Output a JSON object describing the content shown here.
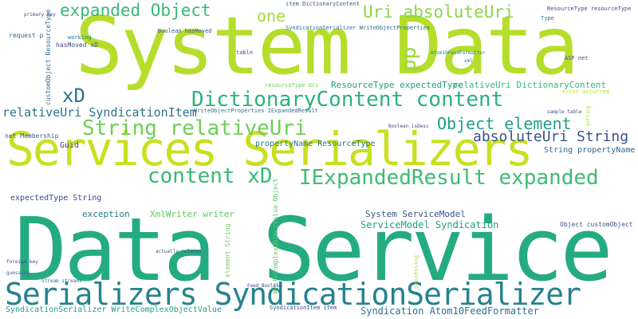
{
  "words": [
    {
      "text": "System Data",
      "color": "#b5de2b"
    },
    {
      "text": "Data Service",
      "color": "#25ab82"
    },
    {
      "text": "Services Serializers",
      "color": "#c8e020"
    },
    {
      "text": "Serializers SyndicationSerializer",
      "color": "#26828e"
    },
    {
      "text": "DictionaryContent content",
      "color": "#2db27d"
    },
    {
      "text": "String relativeUri",
      "color": "#6ece58"
    },
    {
      "text": "content xD",
      "color": "#38b977"
    },
    {
      "text": "IExpandedResult expanded",
      "color": "#3dbc74"
    },
    {
      "text": "expanded Object",
      "color": "#38b977"
    },
    {
      "text": "Uri absoluteUri",
      "color": "#8bd646"
    },
    {
      "text": "Object element",
      "color": "#1f9e89"
    },
    {
      "text": "absoluteUri String",
      "color": "#3b528b"
    },
    {
      "text": "one",
      "color": "#a5db36"
    },
    {
      "text": "xD",
      "color": "#2c728e"
    },
    {
      "text": "pp",
      "color": "#9dd93b"
    },
    {
      "text": "relativeUri SyndicationItem",
      "color": "#2c728e"
    },
    {
      "text": "SyndicationSerializer WriteComplexObjectValue",
      "color": "#1fa187"
    },
    {
      "text": "Syndication Atom10FeedFormatter",
      "color": "#2c728e"
    },
    {
      "text": "ServiceModel Syndication",
      "color": "#1f9e89"
    },
    {
      "text": "System ServiceModel",
      "color": "#3b528b"
    },
    {
      "text": "ResourceType expectedType",
      "color": "#1fa187"
    },
    {
      "text": "relativeUri DictionaryContent",
      "color": "#35b779"
    },
    {
      "text": "String propertyName",
      "color": "#31688e"
    },
    {
      "text": "propertyName ResourceType",
      "color": "#2a788e"
    },
    {
      "text": "expectedType String",
      "color": "#3e4a89"
    },
    {
      "text": "exception",
      "color": "#2a788e"
    },
    {
      "text": "XmlWriter writer",
      "color": "#5ec962"
    },
    {
      "text": "Object customObject",
      "color": "#3b528b"
    },
    {
      "text": "Guid",
      "color": "#443983"
    },
    {
      "text": "net Membership",
      "color": "#365c8d"
    },
    {
      "text": "hasMoved xD",
      "color": "#3e4a89"
    },
    {
      "text": "request p",
      "color": "#31688e"
    },
    {
      "text": "working",
      "color": "#2a788e"
    },
    {
      "text": "Boolean hasMoved",
      "color": "#3b528b"
    },
    {
      "text": "table",
      "color": "#3b528b"
    },
    {
      "text": "item DictionaryContent",
      "color": "#3b528b"
    },
    {
      "text": "SyndicationSerializer WriteObjectProperties",
      "color": "#31688e"
    },
    {
      "text": "WriteObjectProperties IExpandedResult",
      "color": "#2c728e"
    },
    {
      "text": "resourceType Uri",
      "color": "#6ece58"
    },
    {
      "text": "ResourceType resourceType",
      "color": "#3e4a89"
    },
    {
      "text": "ASP net",
      "color": "#3b528b"
    },
    {
      "text": "error occurred",
      "color": "#b5de2b"
    },
    {
      "text": "element String",
      "color": "#6ece58"
    },
    {
      "text": "WriteComplexObjectValue Object",
      "color": "#5ec962"
    },
    {
      "text": "customObject ResourceType",
      "color": "#31688e"
    },
    {
      "text": "SyndicationItem item",
      "color": "#3e4a89"
    },
    {
      "text": "processing",
      "color": "#b5de2b"
    },
    {
      "text": "Type",
      "color": "#2a788e"
    },
    {
      "text": "primary key",
      "color": "#3e4a89"
    },
    {
      "text": "Boolean isDesc",
      "color": "#3e4a89"
    },
    {
      "text": "actually relates",
      "color": "#3b528b"
    },
    {
      "text": "sample table",
      "color": "#3b528b"
    },
    {
      "text": "getting",
      "color": "#addc30"
    },
    {
      "text": "Atom10FeedFormatter",
      "color": "#26828e"
    },
    {
      "text": "foreign key",
      "color": "#3e4a89"
    },
    {
      "text": "guessing",
      "color": "#365c8d"
    },
    {
      "text": "Stream streams",
      "color": "#2c728e"
    },
    {
      "text": "Feed Boolean",
      "color": "#3b528b"
    },
    {
      "text": "xml",
      "color": "#2c728e"
    }
  ]
}
